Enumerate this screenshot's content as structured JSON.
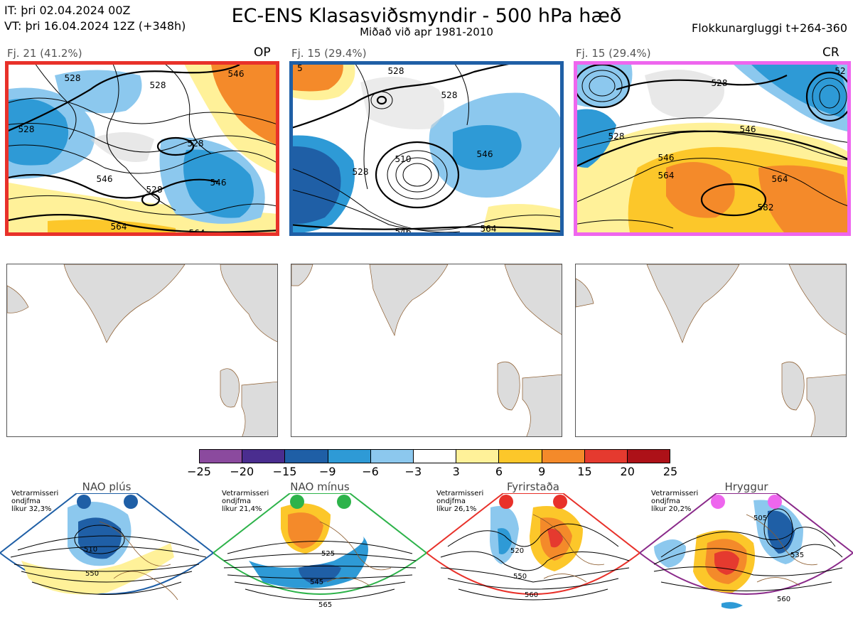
{
  "header": {
    "it_line": "IT: þri 02.04.2024 00Z",
    "vt_line": "VT: þri 16.04.2024 12Z  (+348h)",
    "title": "EC-ENS Klasasviðsmyndir - 500 hPa hæð",
    "subtitle": "Miðað við apr 1981-2010",
    "window": "Flokkunargluggi t+264-360"
  },
  "clusters": [
    {
      "label": "Fj. 21 (41.2%)",
      "tag": "OP",
      "border_color": "#e8312a",
      "contour_labels": [
        "528",
        "528",
        "546",
        "528",
        "528",
        "546",
        "546",
        "564",
        "564",
        "528"
      ]
    },
    {
      "label": "Fj. 15 (29.4%)",
      "tag": "",
      "border_color": "#1f5fa6",
      "contour_labels": [
        "528",
        "528",
        "510",
        "528",
        "546",
        "546",
        "564",
        "5"
      ]
    },
    {
      "label": "Fj. 15 (29.4%)",
      "tag": "CR",
      "border_color": "#ee66ee",
      "contour_labels": [
        "528",
        "546",
        "546",
        "564",
        "582",
        "564",
        "528",
        "52"
      ]
    }
  ],
  "colorbar": {
    "colors": [
      "#8b4a9e",
      "#4a2d8f",
      "#1f5fa6",
      "#2e9ad6",
      "#8cc8ee",
      "#ffffff",
      "#fff199",
      "#fcc72a",
      "#f48a2a",
      "#e53a2f",
      "#ad1118"
    ],
    "ticks": [
      "−25",
      "−20",
      "−15",
      "−9",
      "−6",
      "−3",
      "3",
      "6",
      "9",
      "15",
      "20",
      "25"
    ]
  },
  "regimes": [
    {
      "title": "NAO plús",
      "note": [
        "Vetrarmisseri",
        "ondjfma",
        "líkur 32,3%"
      ],
      "dot_color": "#1f5fa6",
      "border": "#1f5fa6",
      "contours": [
        "510",
        "550"
      ]
    },
    {
      "title": "NAO mínus",
      "note": [
        "Vetrarmisseri",
        "ondjfma",
        "líkur 21,4%"
      ],
      "dot_color": "#2db34a",
      "border": "#2db34a",
      "contours": [
        "525",
        "545",
        "565"
      ]
    },
    {
      "title": "Fyrirstaða",
      "note": [
        "Vetrarmisseri",
        "ondjfma",
        "líkur 26,1%"
      ],
      "dot_color": "#e8312a",
      "border": "#e8312a",
      "contours": [
        "520",
        "550",
        "560"
      ]
    },
    {
      "title": "Hryggur",
      "note": [
        "Vetrarmisseri",
        "ondjfma",
        "líkur 20,2%"
      ],
      "dot_color": "#ee66ee",
      "border": "#8a2a8a",
      "contours": [
        "505",
        "535",
        "560"
      ]
    }
  ]
}
